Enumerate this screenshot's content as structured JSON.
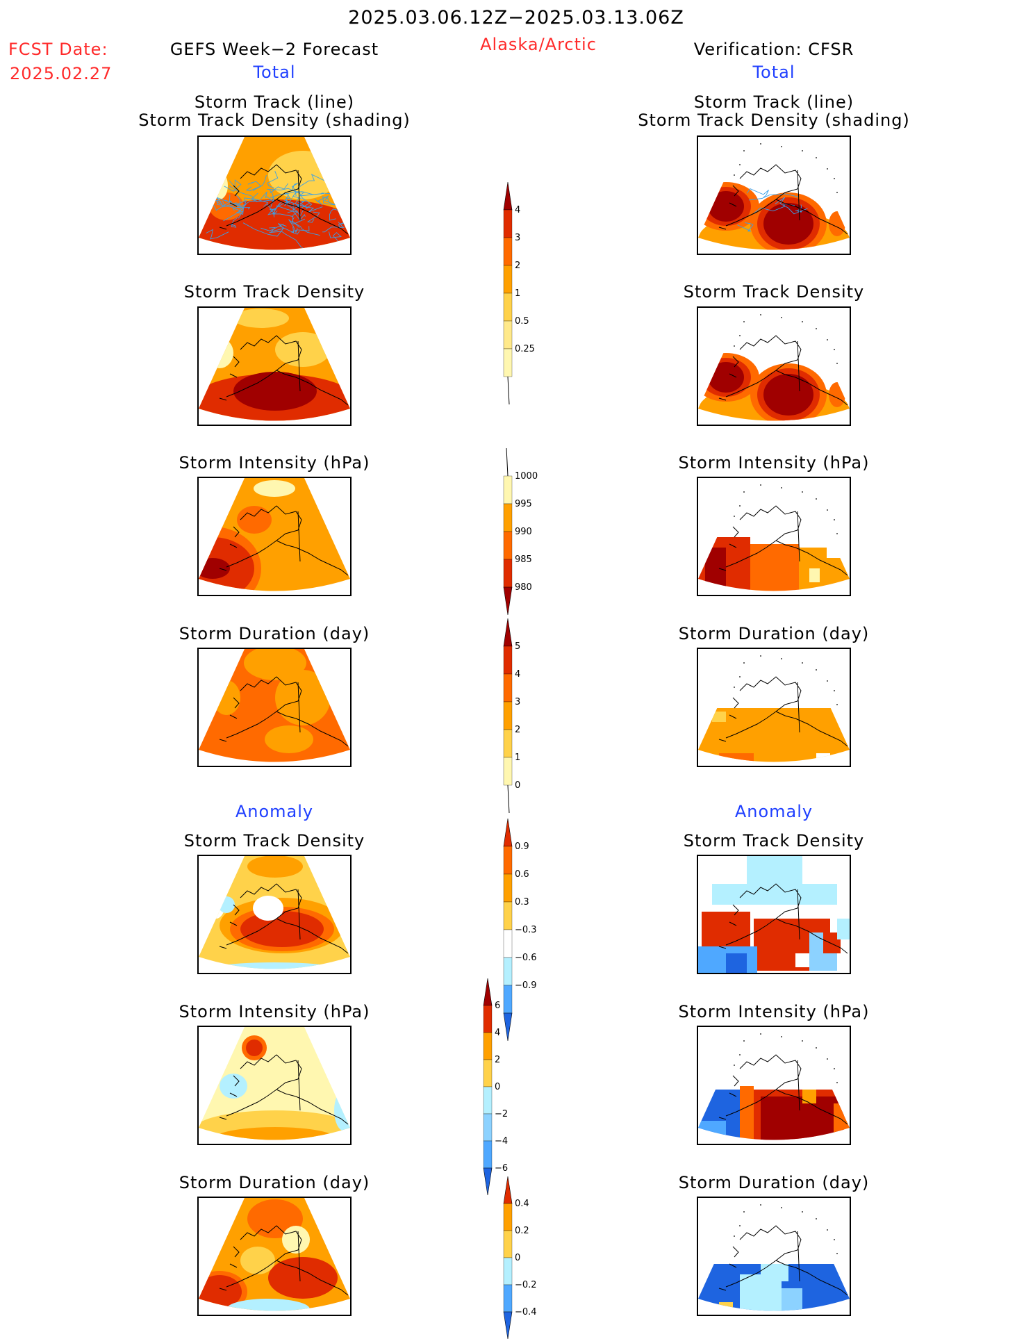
{
  "header": {
    "date_range": "2025.03.06.12Z−2025.03.13.06Z",
    "region": "Alaska/Arctic",
    "fcst_label": "FCST Date:",
    "fcst_date": "2025.02.27",
    "left_title": "GEFS Week−2 Forecast",
    "right_title": "Verification: CFSR"
  },
  "sections": {
    "total": "Total",
    "anomaly": "Anomaly"
  },
  "panel_titles": {
    "track_line": "Storm Track (line)",
    "track_density_shading": "Storm Track Density (shading)",
    "track_density": "Storm Track Density",
    "intensity": "Storm Intensity (hPa)",
    "duration": "Storm Duration (day)"
  },
  "colors": {
    "c1": "#fff7b0",
    "c2": "#ffd24a",
    "c3": "#ffa000",
    "c4": "#ff6a00",
    "c5": "#e02c00",
    "c6": "#a00000",
    "b1": "#b4f0ff",
    "b2": "#8cd2ff",
    "b3": "#4fa8ff",
    "b4": "#1e64e0",
    "track_line": "#3aa0e8"
  },
  "chart_data": [
    {
      "type": "heatmap",
      "name": "forecast_total_track_density",
      "colorbar": [
        0.25,
        0.5,
        1,
        2,
        3,
        4
      ]
    },
    {
      "type": "heatmap",
      "name": "verification_total_track_density",
      "colorbar": [
        0.25,
        0.5,
        1,
        2,
        3,
        4
      ]
    },
    {
      "type": "heatmap",
      "name": "forecast_total_intensity",
      "colorbar": [
        1000,
        995,
        990,
        985,
        980
      ]
    },
    {
      "type": "heatmap",
      "name": "verification_total_intensity",
      "colorbar": [
        1000,
        995,
        990,
        985,
        980
      ]
    },
    {
      "type": "heatmap",
      "name": "forecast_total_duration",
      "colorbar": [
        0,
        1,
        2,
        3,
        4,
        5
      ]
    },
    {
      "type": "heatmap",
      "name": "verification_total_duration",
      "colorbar": [
        0,
        1,
        2,
        3,
        4,
        5
      ]
    },
    {
      "type": "heatmap",
      "name": "forecast_anomaly_track_density",
      "colorbar": [
        0.9,
        0.6,
        0.3,
        -0.3,
        -0.6,
        -0.9
      ]
    },
    {
      "type": "heatmap",
      "name": "verification_anomaly_track_density",
      "colorbar": [
        0.9,
        0.6,
        0.3,
        -0.3,
        -0.6,
        -0.9
      ]
    },
    {
      "type": "heatmap",
      "name": "forecast_anomaly_intensity",
      "colorbar": [
        6,
        4,
        2,
        0,
        -2,
        -4,
        -6
      ]
    },
    {
      "type": "heatmap",
      "name": "verification_anomaly_intensity",
      "colorbar": [
        6,
        4,
        2,
        0,
        -2,
        -4,
        -6
      ]
    },
    {
      "type": "heatmap",
      "name": "forecast_anomaly_duration",
      "colorbar": [
        0.4,
        0.2,
        0,
        -0.2,
        -0.4
      ]
    },
    {
      "type": "heatmap",
      "name": "verification_anomaly_duration",
      "colorbar": [
        0.4,
        0.2,
        0,
        -0.2,
        -0.4
      ]
    }
  ],
  "colorbars": {
    "track_density": [
      "4",
      "3",
      "2",
      "1",
      "0.5",
      "0.25"
    ],
    "intensity": [
      "1000",
      "995",
      "990",
      "985",
      "980"
    ],
    "duration": [
      "5",
      "4",
      "3",
      "2",
      "1",
      "0"
    ],
    "anom_density": [
      "0.9",
      "0.6",
      "0.3",
      "−0.3",
      "−0.6",
      "−0.9"
    ],
    "anom_intensity": [
      "6",
      "4",
      "2",
      "0",
      "−2",
      "−4",
      "−6"
    ],
    "anom_duration": [
      "0.4",
      "0.2",
      "0",
      "−0.2",
      "−0.4"
    ]
  }
}
